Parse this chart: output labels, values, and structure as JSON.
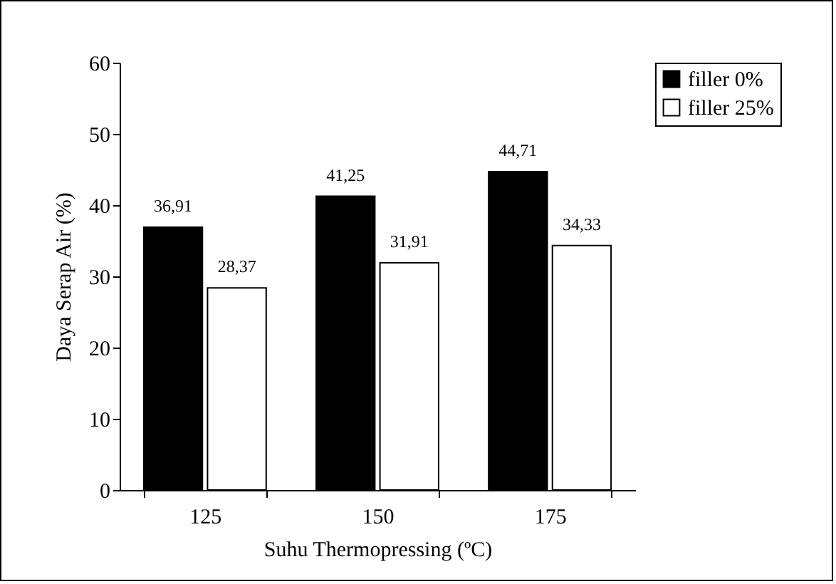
{
  "chart_data": {
    "type": "bar",
    "xlabel": "Suhu Thermopressing (ºC)",
    "ylabel": "Daya Serap Air (%)",
    "categories": [
      "125",
      "150",
      "175"
    ],
    "series": [
      {
        "name": "filler 0%",
        "color": "#000000",
        "values": [
          36.91,
          41.25,
          44.71
        ],
        "value_labels": [
          "36,91",
          "41,25",
          "44,71"
        ]
      },
      {
        "name": "filler 25%",
        "color": "#ffffff",
        "values": [
          28.37,
          31.91,
          34.33
        ],
        "value_labels": [
          "28,37",
          "31,91",
          "34,33"
        ]
      }
    ],
    "ylim": [
      0,
      60
    ],
    "yticks": [
      0,
      10,
      20,
      30,
      40,
      50,
      60
    ],
    "grid": false,
    "legend": "top right"
  }
}
